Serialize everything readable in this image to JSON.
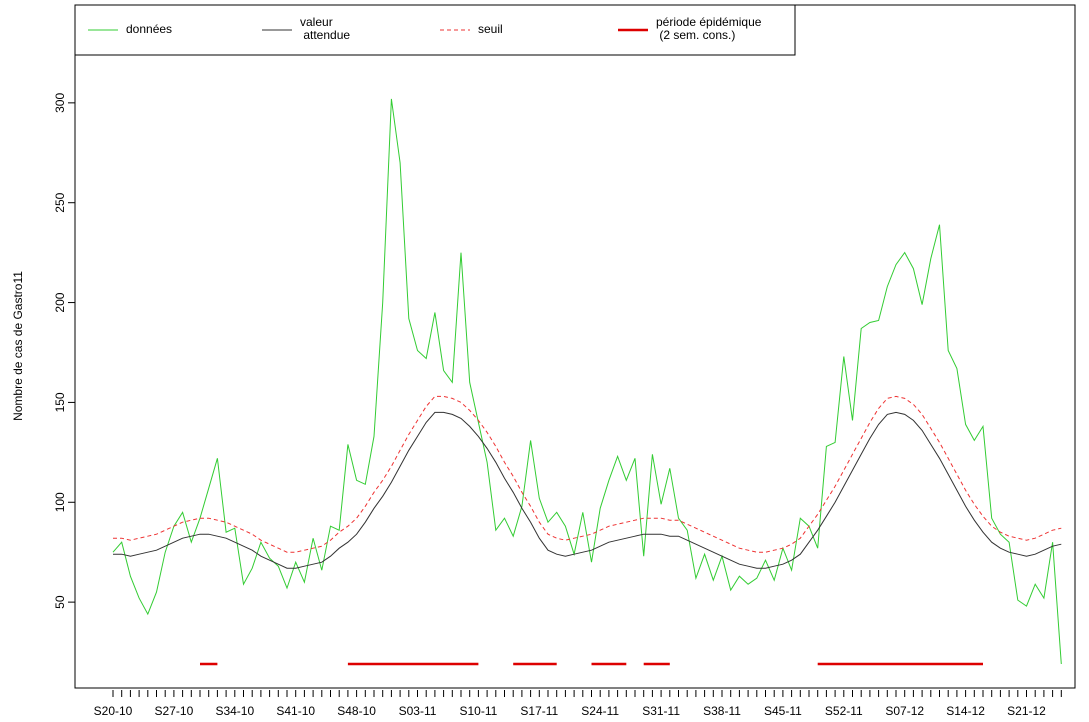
{
  "chart_data": {
    "type": "line",
    "y_label": "Nombre de cas de Gastro11",
    "categories": [
      "S20-10",
      null,
      null,
      null,
      null,
      null,
      null,
      "S27-10",
      null,
      null,
      null,
      null,
      null,
      null,
      "S34-10",
      null,
      null,
      null,
      null,
      null,
      null,
      "S41-10",
      null,
      null,
      null,
      null,
      null,
      null,
      "S48-10",
      null,
      null,
      null,
      null,
      null,
      null,
      "S03-11",
      null,
      null,
      null,
      null,
      null,
      null,
      "S10-11",
      null,
      null,
      null,
      null,
      null,
      null,
      "S17-11",
      null,
      null,
      null,
      null,
      null,
      null,
      "S24-11",
      null,
      null,
      null,
      null,
      null,
      null,
      "S31-11",
      null,
      null,
      null,
      null,
      null,
      null,
      "S38-11",
      null,
      null,
      null,
      null,
      null,
      null,
      "S45-11",
      null,
      null,
      null,
      null,
      null,
      null,
      "S52-11",
      null,
      null,
      null,
      null,
      null,
      null,
      "S07-12",
      null,
      null,
      null,
      null,
      null,
      null,
      "S14-12",
      null,
      null,
      null,
      null,
      null,
      null,
      "S21-12",
      null,
      null,
      null,
      null
    ],
    "ylim": [
      7,
      349
    ],
    "yticks": [
      50,
      100,
      150,
      200,
      250,
      300
    ],
    "series": [
      {
        "name": "données",
        "color": "#33cc33",
        "dash": false,
        "width": 1,
        "values": [
          75,
          80,
          63,
          52,
          44,
          55,
          75,
          88,
          95,
          80,
          92,
          107,
          122,
          85,
          87,
          59,
          67,
          80,
          72,
          68,
          57,
          70,
          60,
          82,
          66,
          88,
          86,
          129,
          111,
          109,
          133,
          200,
          302,
          270,
          192,
          176,
          172,
          195,
          166,
          160,
          225,
          160,
          140,
          120,
          86,
          92,
          83,
          98,
          131,
          102,
          90,
          95,
          88,
          74,
          95,
          70,
          97,
          111,
          123,
          111,
          122,
          73,
          124,
          99,
          117,
          92,
          86,
          62,
          74,
          61,
          73,
          56,
          63,
          59,
          62,
          71,
          61,
          77,
          66,
          92,
          88,
          77,
          128,
          130,
          173,
          141,
          187,
          190,
          191,
          208,
          219,
          225,
          217,
          199,
          222,
          239,
          176,
          167,
          139,
          131,
          138,
          92,
          84,
          80,
          51,
          48,
          59,
          52,
          80,
          19
        ]
      },
      {
        "name": "valeur\n attendue",
        "color": "#333333",
        "dash": false,
        "width": 1,
        "values": [
          74,
          74,
          73,
          74,
          75,
          76,
          78,
          80,
          82,
          83,
          84,
          84,
          83,
          82,
          80,
          78,
          76,
          73,
          71,
          69,
          67,
          67,
          68,
          69,
          70,
          73,
          77,
          80,
          84,
          90,
          97,
          103,
          110,
          118,
          126,
          133,
          140,
          145,
          145,
          144,
          142,
          138,
          133,
          127,
          120,
          112,
          105,
          97,
          90,
          82,
          76,
          74,
          73,
          74,
          75,
          76,
          78,
          80,
          81,
          82,
          83,
          84,
          84,
          84,
          83,
          83,
          81,
          79,
          77,
          75,
          73,
          71,
          69,
          68,
          67,
          67,
          68,
          69,
          71,
          74,
          80,
          86,
          93,
          100,
          108,
          116,
          124,
          132,
          139,
          144,
          145,
          144,
          141,
          136,
          129,
          122,
          114,
          106,
          98,
          91,
          85,
          80,
          77,
          75,
          74,
          73,
          74,
          76,
          78,
          79
        ]
      },
      {
        "name": "seuil",
        "color": "#ee3333",
        "dash": true,
        "width": 1,
        "values": [
          82,
          82,
          81,
          82,
          83,
          84,
          86,
          88,
          90,
          91,
          92,
          92,
          91,
          90,
          88,
          86,
          84,
          81,
          79,
          77,
          75,
          75,
          76,
          77,
          78,
          81,
          85,
          88,
          92,
          98,
          105,
          111,
          118,
          126,
          134,
          141,
          148,
          153,
          153,
          152,
          150,
          146,
          141,
          135,
          128,
          120,
          113,
          105,
          98,
          90,
          84,
          82,
          81,
          82,
          83,
          84,
          86,
          88,
          89,
          90,
          91,
          92,
          92,
          92,
          91,
          91,
          89,
          87,
          85,
          83,
          81,
          79,
          77,
          76,
          75,
          75,
          76,
          77,
          79,
          82,
          88,
          94,
          101,
          108,
          116,
          124,
          132,
          140,
          147,
          152,
          153,
          152,
          149,
          144,
          137,
          130,
          122,
          114,
          106,
          99,
          93,
          88,
          85,
          83,
          82,
          81,
          82,
          84,
          86,
          87
        ]
      },
      {
        "name": "période épidémique\n (2 sem. cons.)",
        "color": "#dd0000",
        "dash": false,
        "width": 2.5,
        "values": [
          null,
          null,
          null,
          null,
          null,
          null,
          null,
          null,
          null,
          null,
          19,
          19,
          19,
          null,
          null,
          null,
          null,
          null,
          null,
          null,
          null,
          null,
          null,
          null,
          null,
          null,
          null,
          19,
          19,
          19,
          19,
          19,
          19,
          19,
          19,
          19,
          19,
          19,
          19,
          19,
          19,
          19,
          19,
          null,
          null,
          null,
          19,
          19,
          19,
          19,
          19,
          19,
          null,
          null,
          null,
          19,
          19,
          19,
          19,
          19,
          null,
          19,
          19,
          19,
          19,
          null,
          null,
          null,
          null,
          null,
          null,
          null,
          null,
          null,
          null,
          null,
          null,
          null,
          null,
          null,
          null,
          19,
          19,
          19,
          19,
          19,
          19,
          19,
          19,
          19,
          19,
          19,
          19,
          19,
          19,
          19,
          19,
          19,
          19,
          19,
          19,
          null,
          null,
          null,
          null,
          null,
          null,
          null,
          null,
          null
        ]
      }
    ]
  }
}
